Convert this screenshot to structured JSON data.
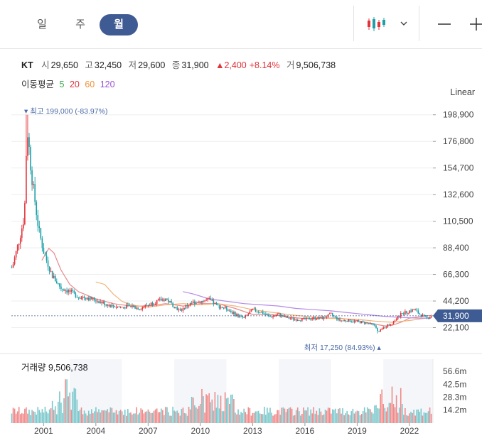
{
  "tabs": [
    {
      "label": "일",
      "active": false
    },
    {
      "label": "주",
      "active": false
    },
    {
      "label": "월",
      "active": true
    }
  ],
  "info": {
    "ticker": "KT",
    "open_label": "시",
    "open": "29,650",
    "high_label": "고",
    "high": "32,450",
    "low_label": "저",
    "low": "29,600",
    "close_label": "종",
    "close": "31,900",
    "change_arrow": "▲",
    "change": "2,400",
    "change_pct": "+8.14%",
    "volume_label": "거",
    "volume": "9,506,738"
  },
  "moving_average": {
    "label": "이동평균",
    "periods": [
      {
        "value": "5",
        "color": "#3aa84a"
      },
      {
        "value": "20",
        "color": "#e0343b"
      },
      {
        "value": "60",
        "color": "#f0923a"
      },
      {
        "value": "120",
        "color": "#9a4fd6"
      }
    ]
  },
  "scale_mode": "Linear",
  "colors": {
    "up": "#e0343b",
    "down": "#1aa0a8",
    "accent": "#3f5b93",
    "volume_up": "#f08a8a",
    "volume_down": "#7cc8cc"
  },
  "chart_data": {
    "type": "candlestick",
    "interval": "monthly",
    "price_axis": {
      "ticks": [
        "198,900",
        "176,800",
        "154,700",
        "132,600",
        "110,500",
        "88,400",
        "66,300",
        "44,200",
        "22,100"
      ],
      "tick_values": [
        198900,
        176800,
        154700,
        132600,
        110500,
        88400,
        66300,
        44200,
        22100
      ],
      "range": [
        10000,
        207000
      ]
    },
    "current_price": {
      "label": "31,900",
      "value": 31900
    },
    "high_marker": {
      "label": "최고 199,000 (-83.97%)",
      "value": 199000,
      "date": 2000.05
    },
    "low_marker": {
      "label": "최저 17,250 (84.93%)",
      "value": 17250,
      "date": 2020.2
    },
    "x_axis": {
      "ticks": [
        "2001",
        "2004",
        "2007",
        "2010",
        "2013",
        "2016",
        "2019",
        "2022"
      ],
      "range": [
        1999.15,
        2023.35
      ]
    },
    "volume": {
      "label": "거래량 9,506,738",
      "ticks": [
        "56.6m",
        "42.5m",
        "28.3m",
        "14.2m"
      ],
      "tick_values": [
        56.6,
        42.5,
        28.3,
        14.2
      ],
      "range": [
        0,
        70
      ]
    },
    "price_keypoints": [
      [
        1999.2,
        72000
      ],
      [
        1999.6,
        95000
      ],
      [
        1999.9,
        115000
      ],
      [
        2000.05,
        190000
      ],
      [
        2000.3,
        150000
      ],
      [
        2000.7,
        105000
      ],
      [
        2001.0,
        85000
      ],
      [
        2001.5,
        65000
      ],
      [
        2002.0,
        55000
      ],
      [
        2002.5,
        52000
      ],
      [
        2003.0,
        48000
      ],
      [
        2003.5,
        47000
      ],
      [
        2004.0,
        45000
      ],
      [
        2004.5,
        42000
      ],
      [
        2005.0,
        40000
      ],
      [
        2005.5,
        39000
      ],
      [
        2006.0,
        40000
      ],
      [
        2006.5,
        38000
      ],
      [
        2007.0,
        41000
      ],
      [
        2007.5,
        44000
      ],
      [
        2008.0,
        46000
      ],
      [
        2008.5,
        40000
      ],
      [
        2008.8,
        36000
      ],
      [
        2009.2,
        40000
      ],
      [
        2009.6,
        43000
      ],
      [
        2010.0,
        44000
      ],
      [
        2010.5,
        45000
      ],
      [
        2011.0,
        40000
      ],
      [
        2011.5,
        38000
      ],
      [
        2012.0,
        33000
      ],
      [
        2012.5,
        30000
      ],
      [
        2013.0,
        37000
      ],
      [
        2013.5,
        35000
      ],
      [
        2014.0,
        31000
      ],
      [
        2014.5,
        33000
      ],
      [
        2015.0,
        30000
      ],
      [
        2015.5,
        29000
      ],
      [
        2016.0,
        29000
      ],
      [
        2016.5,
        30000
      ],
      [
        2017.0,
        30000
      ],
      [
        2017.5,
        33000
      ],
      [
        2018.0,
        28000
      ],
      [
        2018.5,
        28000
      ],
      [
        2019.0,
        27000
      ],
      [
        2019.5,
        26000
      ],
      [
        2020.0,
        24000
      ],
      [
        2020.2,
        18000
      ],
      [
        2020.6,
        23000
      ],
      [
        2021.0,
        26000
      ],
      [
        2021.5,
        33000
      ],
      [
        2022.0,
        36000
      ],
      [
        2022.3,
        37000
      ],
      [
        2022.6,
        33000
      ],
      [
        2023.0,
        30000
      ],
      [
        2023.25,
        31900
      ]
    ],
    "ma_keypoints": {
      "20": [
        [
          2000.9,
          78000
        ],
        [
          2001.3,
          88000
        ],
        [
          2001.6,
          84000
        ],
        [
          2002.0,
          70000
        ],
        [
          2002.5,
          58000
        ],
        [
          2003.0,
          52000
        ],
        [
          2004.0,
          46000
        ],
        [
          2005.0,
          42000
        ],
        [
          2006.0,
          40000
        ],
        [
          2007.0,
          40000
        ],
        [
          2008.0,
          42000
        ],
        [
          2009.0,
          40000
        ],
        [
          2010.0,
          42000
        ],
        [
          2011.0,
          42000
        ],
        [
          2012.0,
          38000
        ],
        [
          2013.0,
          33000
        ],
        [
          2014.0,
          33000
        ],
        [
          2015.0,
          31000
        ],
        [
          2016.0,
          29500
        ],
        [
          2017.0,
          30000
        ],
        [
          2018.0,
          30000
        ],
        [
          2019.0,
          28000
        ],
        [
          2020.0,
          25000
        ],
        [
          2020.6,
          23500
        ],
        [
          2021.0,
          24000
        ],
        [
          2021.6,
          27000
        ],
        [
          2022.0,
          30000
        ],
        [
          2023.0,
          32000
        ],
        [
          2023.25,
          32000
        ]
      ],
      "60": [
        [
          2004.0,
          60000
        ],
        [
          2004.5,
          58000
        ],
        [
          2005.0,
          50000
        ],
        [
          2005.5,
          44000
        ],
        [
          2006.0,
          41000
        ],
        [
          2007.0,
          39000
        ],
        [
          2008.0,
          41000
        ],
        [
          2009.0,
          42000
        ],
        [
          2010.0,
          41000
        ],
        [
          2011.0,
          42000
        ],
        [
          2012.0,
          40000
        ],
        [
          2013.0,
          37000
        ],
        [
          2014.0,
          35000
        ],
        [
          2015.0,
          33000
        ],
        [
          2016.0,
          31500
        ],
        [
          2017.0,
          30000
        ],
        [
          2018.0,
          29500
        ],
        [
          2019.0,
          29000
        ],
        [
          2020.0,
          27500
        ],
        [
          2021.0,
          26500
        ],
        [
          2022.0,
          28000
        ],
        [
          2023.25,
          30500
        ]
      ],
      "120": [
        [
          2009.0,
          52000
        ],
        [
          2009.6,
          50000
        ],
        [
          2010.5,
          46000
        ],
        [
          2011.5,
          44000
        ],
        [
          2012.5,
          42000
        ],
        [
          2013.5,
          41000
        ],
        [
          2014.5,
          40000
        ],
        [
          2015.5,
          38000
        ],
        [
          2016.5,
          37000
        ],
        [
          2017.5,
          36000
        ],
        [
          2018.5,
          34500
        ],
        [
          2019.5,
          33000
        ],
        [
          2020.5,
          31500
        ],
        [
          2021.5,
          30500
        ],
        [
          2022.5,
          30000
        ],
        [
          2023.25,
          30000
        ]
      ]
    }
  }
}
